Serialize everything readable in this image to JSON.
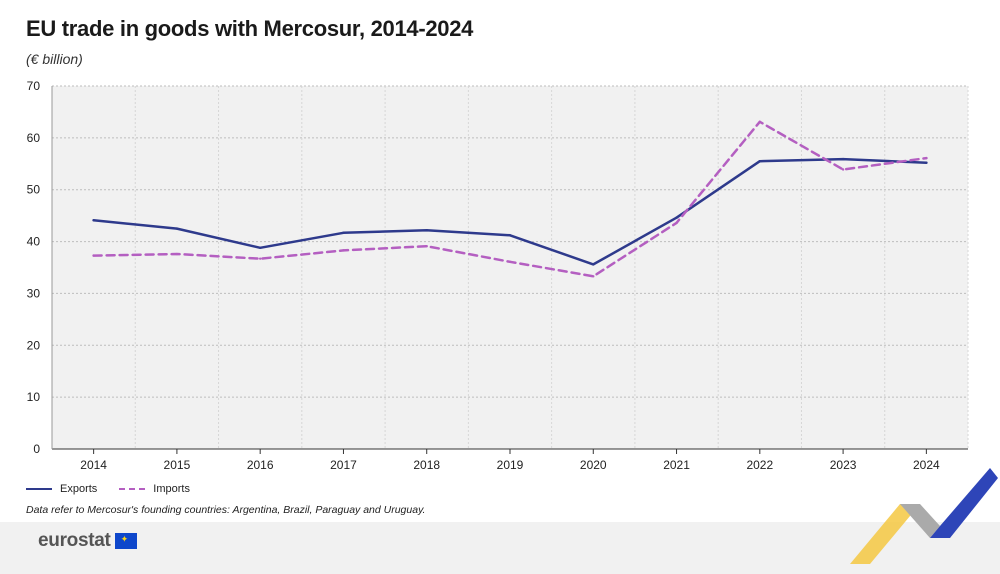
{
  "header": {
    "title": "EU trade in goods with Mercosur, 2014-2024",
    "subtitle": "(€ billion)"
  },
  "legend": {
    "exports_label": "Exports",
    "imports_label": "Imports"
  },
  "note": "Data refer to Mercosur's founding countries: Argentina, Brazil, Paraguay and Uruguay.",
  "footer": {
    "logo_text": "eurostat"
  },
  "colors": {
    "exports": "#2e3a8c",
    "imports": "#b45fc1",
    "grid": "#bdbdbd",
    "plot_bg": "#f1f1f1"
  },
  "chart_data": {
    "type": "line",
    "title": "EU trade in goods with Mercosur, 2014-2024",
    "ylabel": "€ billion",
    "xlabel": "",
    "categories": [
      "2014",
      "2015",
      "2016",
      "2017",
      "2018",
      "2019",
      "2020",
      "2021",
      "2022",
      "2023",
      "2024"
    ],
    "ylim": [
      0,
      70
    ],
    "yticks": [
      0,
      10,
      20,
      30,
      40,
      50,
      60,
      70
    ],
    "grid": true,
    "legend_position": "bottom-left",
    "series": [
      {
        "name": "Exports",
        "style": "solid",
        "values": [
          44.1,
          42.5,
          38.8,
          41.7,
          42.2,
          41.2,
          35.6,
          44.6,
          55.5,
          55.9,
          55.2
        ]
      },
      {
        "name": "Imports",
        "style": "dashed",
        "values": [
          37.3,
          37.6,
          36.7,
          38.3,
          39.1,
          36.1,
          33.3,
          43.6,
          63.1,
          53.9,
          56.1
        ]
      }
    ]
  }
}
